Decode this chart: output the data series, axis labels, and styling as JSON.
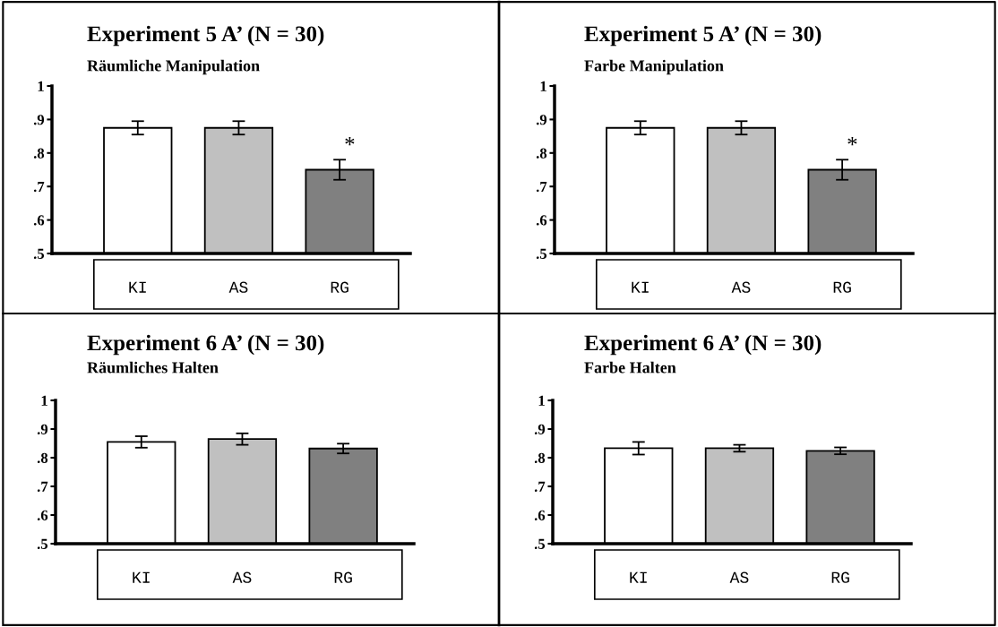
{
  "chart_data": [
    {
      "type": "bar",
      "title": "Experiment 5 A’ (N = 30)",
      "subtitle": "Räumliche Manipulation",
      "categories": [
        "KI",
        "AS",
        "RG"
      ],
      "values": [
        0.875,
        0.875,
        0.75
      ],
      "errors": [
        0.02,
        0.02,
        0.03
      ],
      "colors": [
        "#ffffff",
        "#c0c0c0",
        "#808080"
      ],
      "ylim": [
        0.5,
        1
      ],
      "yticks": [
        {
          "value": 0.5,
          "label": ".5"
        },
        {
          "value": 0.6,
          "label": ".6"
        },
        {
          "value": 0.7,
          "label": ".7"
        },
        {
          "value": 0.8,
          "label": ".8"
        },
        {
          "value": 0.9,
          "label": ".9"
        },
        1
      ],
      "grid": false,
      "annotations": [
        "*"
      ]
    },
    {
      "type": "bar",
      "title": "Experiment 5 A’ (N = 30)",
      "subtitle": "Farbe Manipulation",
      "categories": [
        "KI",
        "AS",
        "RG"
      ],
      "values": [
        0.875,
        0.875,
        0.75
      ],
      "errors": [
        0.02,
        0.02,
        0.03
      ],
      "colors": [
        "#ffffff",
        "#c0c0c0",
        "#808080"
      ],
      "ylim": [
        0.5,
        1
      ],
      "yticks": [
        {
          "value": 0.5,
          "label": ".5"
        },
        {
          "value": 0.6,
          "label": ".6"
        },
        {
          "value": 0.7,
          "label": ".7"
        },
        {
          "value": 0.8,
          "label": ".8"
        },
        {
          "value": 0.9,
          "label": ".9"
        },
        1
      ],
      "grid": false,
      "annotations": [
        "*"
      ]
    },
    {
      "type": "bar",
      "title": "Experiment 6 A’ (N = 30)",
      "subtitle": "Räumliches Halten",
      "categories": [
        "KI",
        "AS",
        "RG"
      ],
      "values": [
        0.855,
        0.865,
        0.832
      ],
      "errors": [
        0.02,
        0.02,
        0.017
      ],
      "colors": [
        "#ffffff",
        "#c0c0c0",
        "#808080"
      ],
      "ylim": [
        0.5,
        1
      ],
      "yticks": [
        {
          "value": 0.5,
          "label": ".5"
        },
        {
          "value": 0.6,
          "label": ".6"
        },
        {
          "value": 0.7,
          "label": ".7"
        },
        {
          "value": 0.8,
          "label": ".8"
        },
        {
          "value": 0.9,
          "label": ".9"
        },
        1
      ],
      "grid": false
    },
    {
      "type": "bar",
      "title": "Experiment 6 A’ (N = 30)",
      "subtitle": "Farbe Halten",
      "categories": [
        "KI",
        "AS",
        "RG"
      ],
      "values": [
        0.833,
        0.833,
        0.824
      ],
      "errors": [
        0.022,
        0.012,
        0.012
      ],
      "colors": [
        "#ffffff",
        "#c0c0c0",
        "#808080"
      ],
      "ylim": [
        0.5,
        1
      ],
      "yticks": [
        {
          "value": 0.5,
          "label": ".5"
        },
        {
          "value": 0.6,
          "label": ".6"
        },
        {
          "value": 0.7,
          "label": ".7"
        },
        {
          "value": 0.8,
          "label": ".8"
        },
        {
          "value": 0.9,
          "label": ".9"
        },
        1
      ],
      "grid": false
    }
  ]
}
